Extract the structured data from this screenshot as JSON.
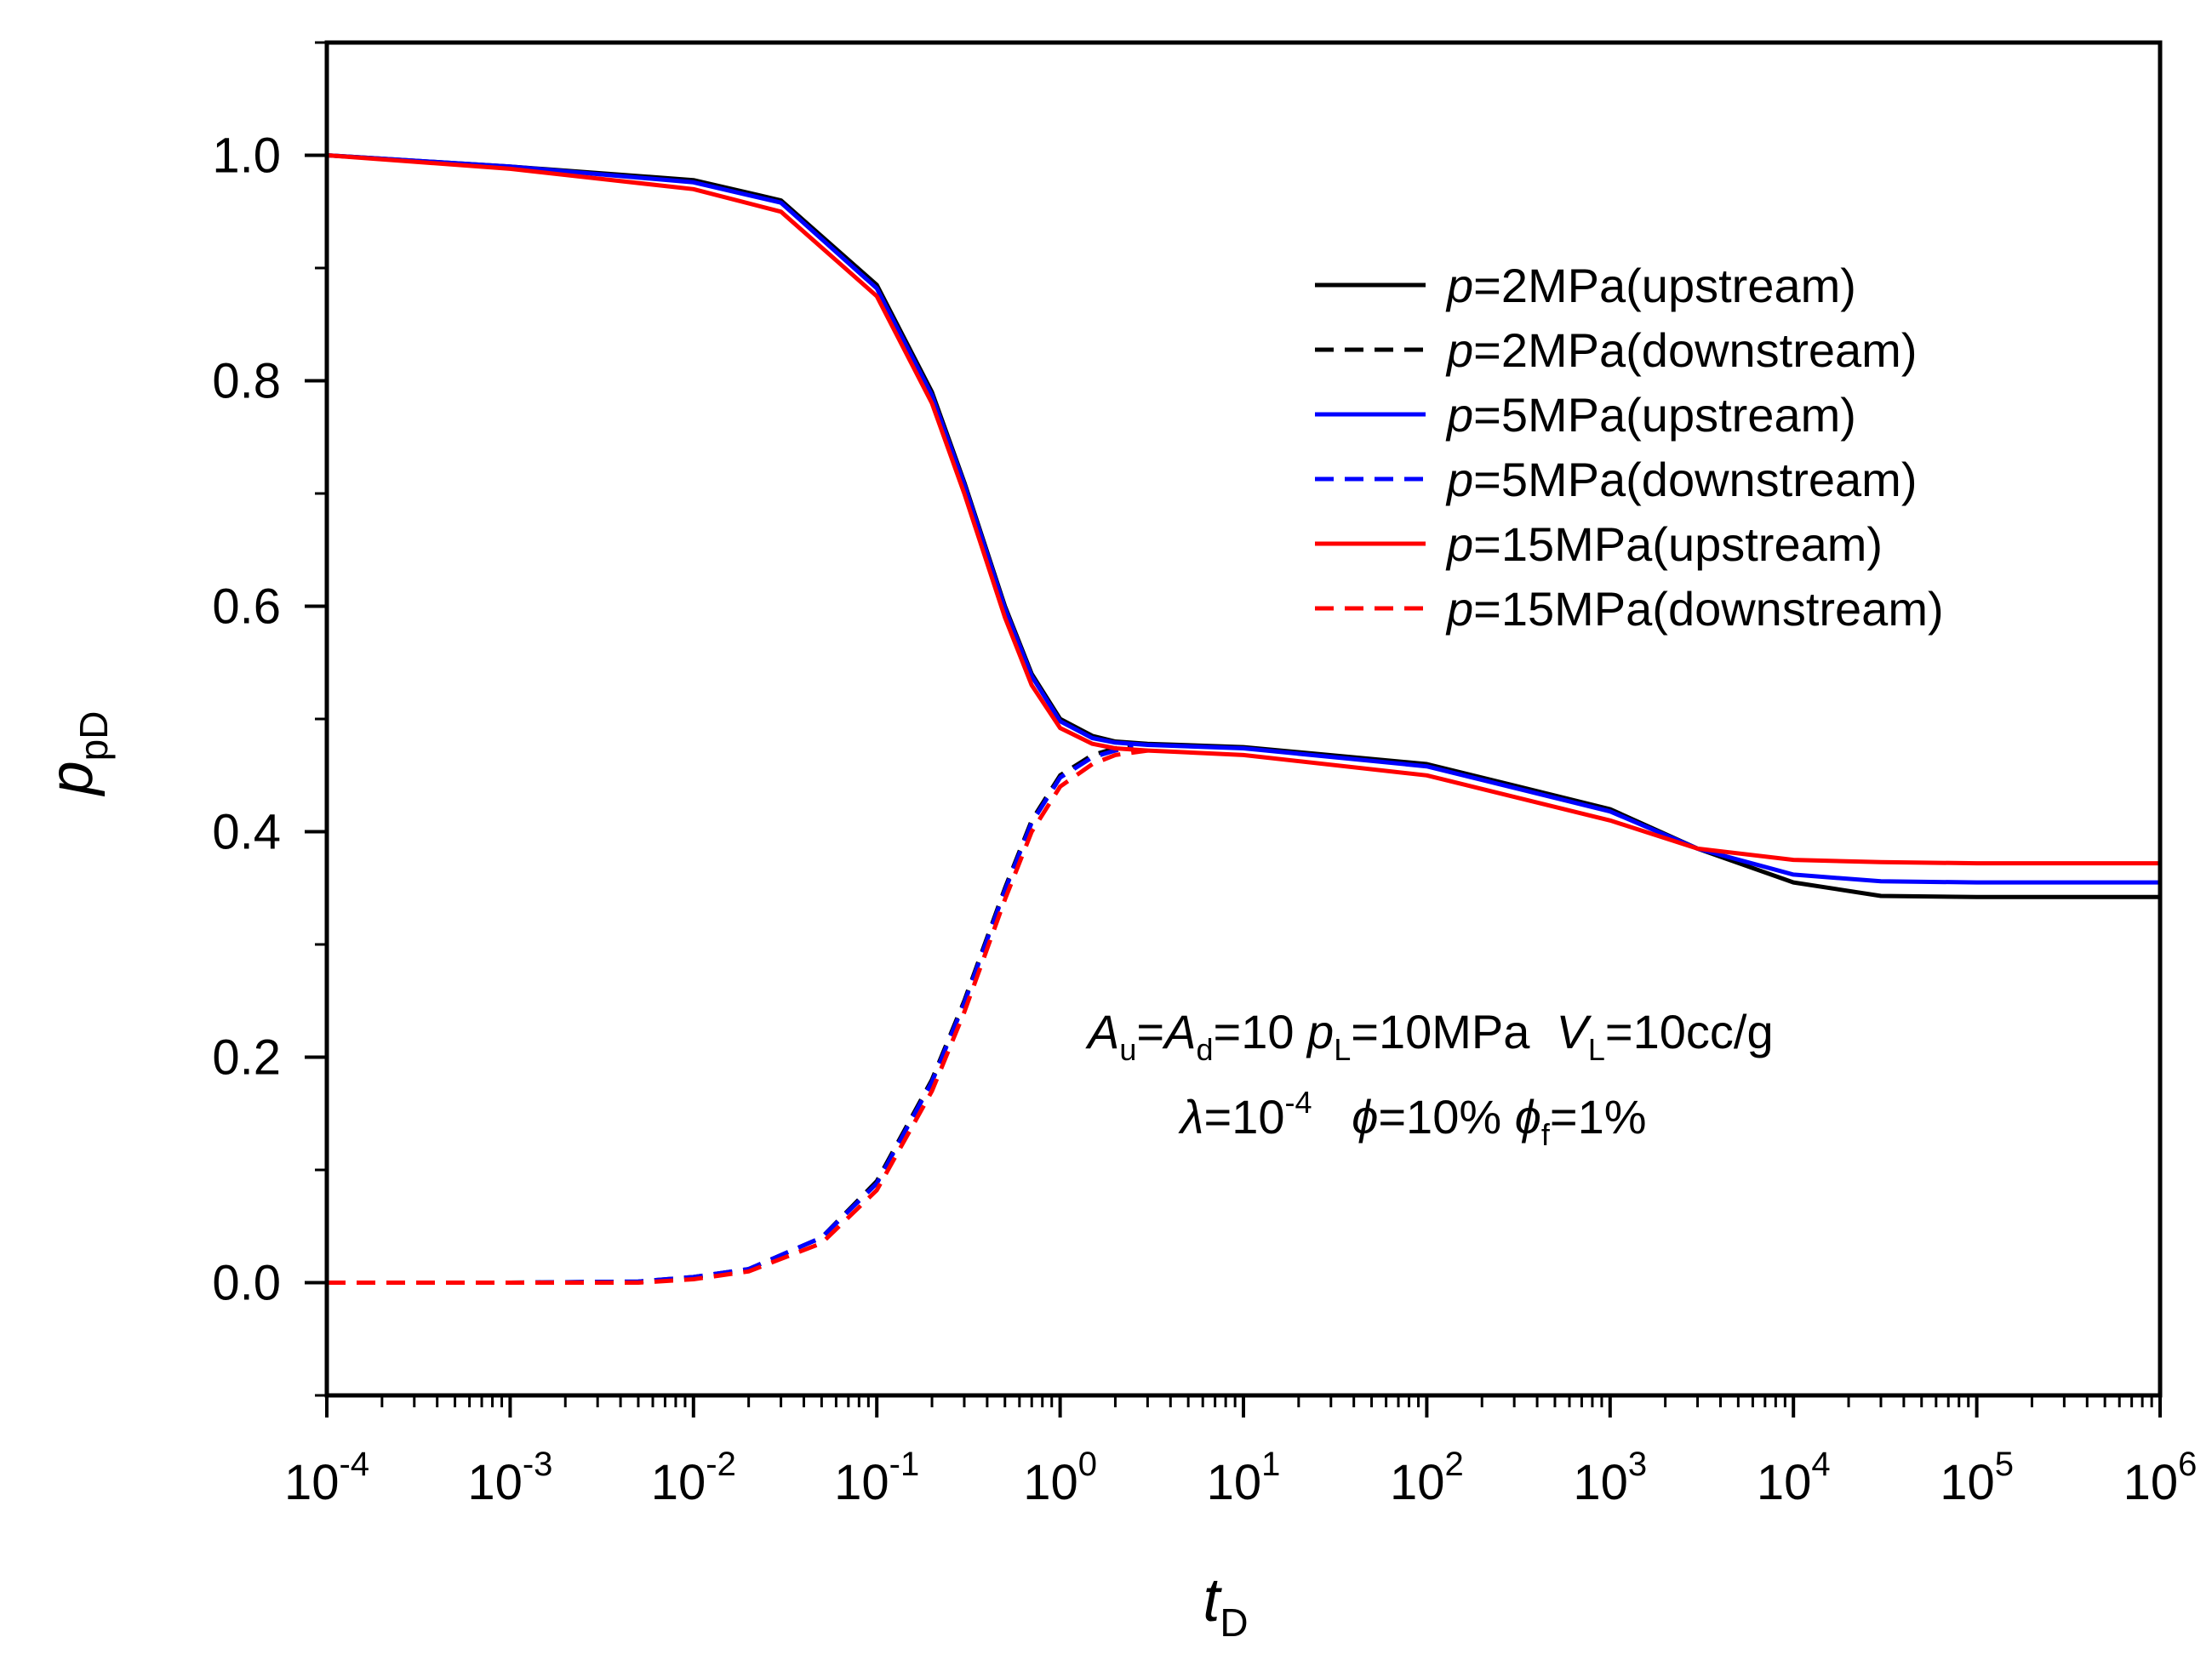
{
  "chart_data": {
    "type": "line",
    "xscale": "log",
    "xlim": [
      0.0001,
      1000000
    ],
    "ylim": [
      -0.1,
      1.1
    ],
    "xlabel": {
      "main": "t",
      "sub": "D"
    },
    "ylabel": {
      "main": "p",
      "sub": "pD"
    },
    "x_ticks": [
      {
        "base": "10",
        "exp": "-4"
      },
      {
        "base": "10",
        "exp": "-3"
      },
      {
        "base": "10",
        "exp": "-2"
      },
      {
        "base": "10",
        "exp": "-1"
      },
      {
        "base": "10",
        "exp": "0"
      },
      {
        "base": "10",
        "exp": "1"
      },
      {
        "base": "10",
        "exp": "2"
      },
      {
        "base": "10",
        "exp": "3"
      },
      {
        "base": "10",
        "exp": "4"
      },
      {
        "base": "10",
        "exp": "5"
      },
      {
        "base": "10",
        "exp": "6"
      }
    ],
    "y_ticks": [
      {
        "value": 0.0,
        "label": "0.0"
      },
      {
        "value": 0.2,
        "label": "0.2"
      },
      {
        "value": 0.4,
        "label": "0.4"
      },
      {
        "value": 0.6,
        "label": "0.6"
      },
      {
        "value": 0.8,
        "label": "0.8"
      },
      {
        "value": 1.0,
        "label": "1.0"
      }
    ],
    "legend_position": "top-right",
    "series": [
      {
        "name": "p=2MPa(upstream)",
        "label_var": "p",
        "label_rest": "=2MPa(upstream)",
        "color": "#000000",
        "dash": "solid",
        "x": [
          0.0001,
          0.001,
          0.01,
          0.03,
          0.1,
          0.2,
          0.3,
          0.5,
          0.7,
          1,
          1.5,
          2,
          3,
          10,
          100,
          1000,
          3000,
          10000,
          30000,
          100000,
          1000000
        ],
        "y": [
          1.0,
          0.99,
          0.978,
          0.96,
          0.885,
          0.79,
          0.71,
          0.6,
          0.54,
          0.5,
          0.485,
          0.48,
          0.478,
          0.475,
          0.46,
          0.42,
          0.385,
          0.355,
          0.343,
          0.342,
          0.342
        ]
      },
      {
        "name": "p=2MPa(downstream)",
        "label_var": "p",
        "label_rest": "=2MPa(downstream)",
        "color": "#000000",
        "dash": "dashed",
        "x": [
          0.0001,
          0.001,
          0.005,
          0.01,
          0.02,
          0.05,
          0.1,
          0.2,
          0.3,
          0.5,
          0.7,
          1,
          1.5,
          2,
          2.5
        ],
        "y": [
          0.0,
          0.0,
          0.001,
          0.005,
          0.012,
          0.04,
          0.09,
          0.18,
          0.25,
          0.35,
          0.41,
          0.45,
          0.468,
          0.474,
          0.476
        ]
      },
      {
        "name": "p=5MPa(upstream)",
        "label_var": "p",
        "label_rest": "=5MPa(upstream)",
        "color": "#0000ff",
        "dash": "solid",
        "x": [
          0.0001,
          0.001,
          0.01,
          0.03,
          0.1,
          0.2,
          0.3,
          0.5,
          0.7,
          1,
          1.5,
          2,
          3,
          10,
          100,
          1000,
          3000,
          10000,
          30000,
          100000,
          1000000
        ],
        "y": [
          1.0,
          0.99,
          0.976,
          0.958,
          0.882,
          0.787,
          0.708,
          0.598,
          0.538,
          0.498,
          0.483,
          0.479,
          0.477,
          0.474,
          0.458,
          0.418,
          0.385,
          0.362,
          0.356,
          0.355,
          0.355
        ]
      },
      {
        "name": "p=5MPa(downstream)",
        "label_var": "p",
        "label_rest": "=5MPa(downstream)",
        "color": "#0000ff",
        "dash": "dashed",
        "x": [
          0.0001,
          0.001,
          0.005,
          0.01,
          0.02,
          0.05,
          0.1,
          0.2,
          0.3,
          0.5,
          0.7,
          1,
          1.5,
          2,
          2.5
        ],
        "y": [
          0.0,
          0.0,
          0.001,
          0.005,
          0.012,
          0.04,
          0.088,
          0.178,
          0.248,
          0.348,
          0.408,
          0.448,
          0.466,
          0.472,
          0.475
        ]
      },
      {
        "name": "p=15MPa(upstream)",
        "label_var": "p",
        "label_rest": "=15MPa(upstream)",
        "color": "#ff0000",
        "dash": "solid",
        "x": [
          0.0001,
          0.001,
          0.01,
          0.03,
          0.1,
          0.2,
          0.3,
          0.5,
          0.7,
          1,
          1.5,
          2,
          3,
          10,
          100,
          1000,
          3000,
          10000,
          30000,
          100000,
          1000000
        ],
        "y": [
          1.0,
          0.988,
          0.97,
          0.95,
          0.875,
          0.78,
          0.7,
          0.59,
          0.53,
          0.492,
          0.478,
          0.474,
          0.472,
          0.468,
          0.45,
          0.41,
          0.385,
          0.375,
          0.373,
          0.372,
          0.372
        ]
      },
      {
        "name": "p=15MPa(downstream)",
        "label_var": "p",
        "label_rest": "=15MPa(downstream)",
        "color": "#ff0000",
        "dash": "dashed",
        "x": [
          0.0001,
          0.001,
          0.005,
          0.01,
          0.02,
          0.05,
          0.1,
          0.2,
          0.3,
          0.5,
          0.7,
          1,
          1.5,
          2,
          3
        ],
        "y": [
          0.0,
          0.0,
          0.0,
          0.003,
          0.01,
          0.035,
          0.082,
          0.17,
          0.24,
          0.34,
          0.4,
          0.44,
          0.46,
          0.468,
          0.472
        ]
      }
    ],
    "annotations": {
      "line1": {
        "A1": "A",
        "A1_sub": "u",
        "eq1": "=",
        "A2": "A",
        "A2_sub": "d",
        "eq2": "=10 ",
        "p": "p",
        "p_sub": "L",
        "eq3": "=10MPa  ",
        "V": "V",
        "V_sub": "L",
        "eq4": "=10cc/g"
      },
      "line2": {
        "lambda": "λ",
        "eq1": "=10",
        "exp": "-4",
        "phi": "ϕ",
        "eq2": "=10% ",
        "phi_f": "ϕ",
        "phi_f_sub": "f",
        "eq3": "=1%"
      }
    }
  }
}
